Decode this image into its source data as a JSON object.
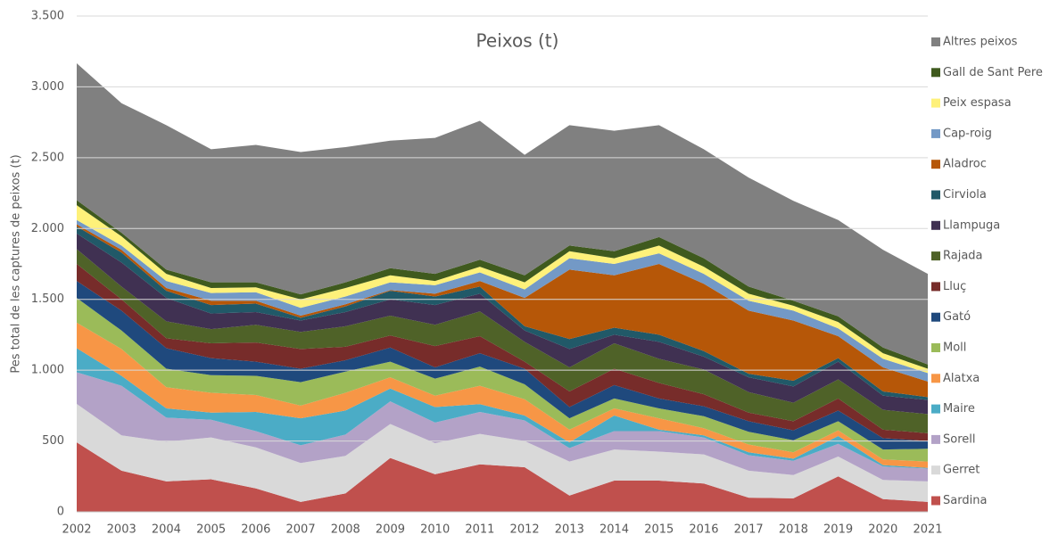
{
  "chart_data": {
    "type": "stacked-area",
    "title": "Peixos (t)",
    "y_label": "Pes total de les captures de peixos (t)",
    "x": [
      2002,
      2003,
      2004,
      2005,
      2006,
      2007,
      2008,
      2009,
      2010,
      2011,
      2012,
      2013,
      2014,
      2015,
      2016,
      2017,
      2018,
      2019,
      2020,
      2021
    ],
    "xlim": [
      2002,
      2021
    ],
    "ylim": [
      0,
      3500
    ],
    "yticks": [
      0,
      500,
      {
        "value": 1000,
        "label": "1.000"
      },
      {
        "value": 1500,
        "label": "1.500"
      },
      {
        "value": 2000,
        "label": "2.000"
      },
      {
        "value": 2500,
        "label": "2.500"
      },
      {
        "value": 3000,
        "label": "3.000"
      },
      {
        "value": 3500,
        "label": "3.500"
      }
    ],
    "grid": true,
    "legend": "right",
    "series": [
      {
        "name": "Sardina",
        "color": "#c0504d",
        "values": [
          490,
          290,
          215,
          230,
          165,
          70,
          130,
          380,
          265,
          335,
          315,
          115,
          220,
          220,
          200,
          100,
          95,
          250,
          90,
          70
        ]
      },
      {
        "name": "Gerret",
        "color": "#d9d9d9",
        "values": [
          272,
          250,
          280,
          295,
          290,
          275,
          265,
          240,
          220,
          215,
          185,
          240,
          220,
          205,
          205,
          190,
          165,
          140,
          135,
          145
        ]
      },
      {
        "name": "Sorell",
        "color": "#b3a2c7",
        "values": [
          223,
          350,
          170,
          125,
          115,
          125,
          150,
          160,
          145,
          155,
          145,
          95,
          130,
          145,
          120,
          110,
          100,
          90,
          95,
          90
        ]
      },
      {
        "name": "Maire",
        "color": "#4bacc6",
        "values": [
          170,
          70,
          65,
          50,
          135,
          190,
          170,
          90,
          110,
          55,
          35,
          40,
          110,
          10,
          15,
          20,
          15,
          55,
          10,
          5
        ]
      },
      {
        "name": "Alatxa",
        "color": "#f79646",
        "values": [
          180,
          190,
          150,
          140,
          120,
          90,
          125,
          80,
          80,
          130,
          115,
          90,
          50,
          80,
          50,
          55,
          45,
          40,
          40,
          45
        ]
      },
      {
        "name": "Moll",
        "color": "#9bbb59",
        "values": [
          175,
          130,
          130,
          125,
          135,
          165,
          150,
          110,
          120,
          135,
          105,
          80,
          70,
          70,
          85,
          90,
          85,
          65,
          70,
          90
        ]
      },
      {
        "name": "Gató",
        "color": "#1f497d",
        "values": [
          120,
          140,
          145,
          120,
          100,
          95,
          80,
          100,
          80,
          95,
          110,
          80,
          95,
          70,
          70,
          75,
          70,
          75,
          80,
          55
        ]
      },
      {
        "name": "Lluç",
        "color": "#772c2a",
        "values": [
          120,
          80,
          70,
          105,
          135,
          140,
          95,
          85,
          150,
          120,
          50,
          110,
          115,
          110,
          85,
          60,
          65,
          85,
          60,
          55
        ]
      },
      {
        "name": "Rajada",
        "color": "#4f6228",
        "values": [
          105,
          90,
          120,
          100,
          125,
          120,
          145,
          140,
          150,
          175,
          140,
          170,
          180,
          170,
          175,
          145,
          130,
          135,
          140,
          135
        ]
      },
      {
        "name": "Llampuga",
        "color": "#403152",
        "values": [
          110,
          170,
          165,
          110,
          90,
          80,
          100,
          115,
          140,
          125,
          80,
          130,
          60,
          120,
          90,
          105,
          115,
          125,
          100,
          100
        ]
      },
      {
        "name": "Cirviola",
        "color": "#215968",
        "values": [
          50,
          70,
          50,
          60,
          60,
          20,
          40,
          60,
          60,
          50,
          30,
          70,
          50,
          50,
          40,
          25,
          40,
          25,
          30,
          20
        ]
      },
      {
        "name": "Aladroc",
        "color": "#b65708",
        "values": [
          15,
          20,
          20,
          30,
          20,
          15,
          15,
          5,
          20,
          40,
          200,
          490,
          370,
          500,
          475,
          445,
          425,
          155,
          170,
          110
        ]
      },
      {
        "name": "Cap-roig",
        "color": "#7399c6",
        "values": [
          30,
          30,
          50,
          55,
          60,
          55,
          55,
          55,
          60,
          60,
          60,
          80,
          80,
          75,
          70,
          70,
          70,
          55,
          60,
          60
        ]
      },
      {
        "name": "Peix espasa",
        "color": "#fef17a",
        "values": [
          105,
          65,
          50,
          35,
          35,
          60,
          60,
          50,
          30,
          40,
          50,
          50,
          40,
          55,
          50,
          50,
          35,
          45,
          40,
          30
        ]
      },
      {
        "name": "Gall de Sant Pere",
        "color": "#3f5a1e",
        "values": [
          35,
          25,
          30,
          40,
          35,
          35,
          40,
          50,
          50,
          50,
          50,
          40,
          50,
          60,
          60,
          50,
          35,
          40,
          40,
          30
        ]
      },
      {
        "name": "Altres peixos",
        "color": "#808080",
        "values": [
          966,
          915,
          1020,
          940,
          970,
          1005,
          955,
          900,
          960,
          980,
          850,
          850,
          850,
          790,
          770,
          770,
          705,
          680,
          690,
          640
        ]
      }
    ]
  }
}
